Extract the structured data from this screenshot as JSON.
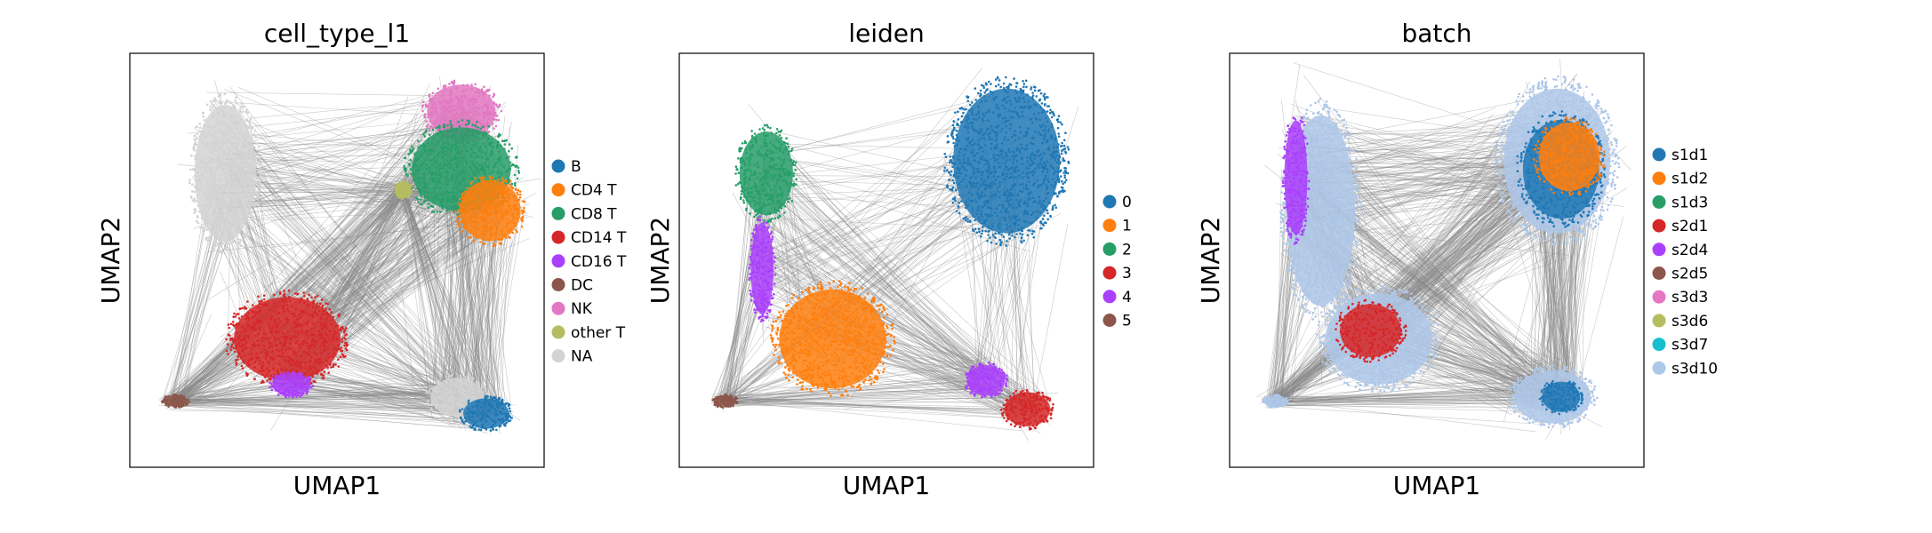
{
  "figure": {
    "background": "#ffffff",
    "edge_color": "#888888",
    "na_color": "#d3d3d3"
  },
  "chart_data": [
    {
      "type": "scatter",
      "title": "cell_type_l1",
      "xlabel": "UMAP1",
      "ylabel": "UMAP2",
      "xlim": [
        0,
        1
      ],
      "ylim": [
        0,
        1
      ],
      "grid": false,
      "legend_position": "right",
      "categories": [
        {
          "name": "B",
          "color": "#1f77b4"
        },
        {
          "name": "CD4 T",
          "color": "#ff7f0e"
        },
        {
          "name": "CD8 T",
          "color": "#279e68"
        },
        {
          "name": "CD14 T",
          "color": "#d62728"
        },
        {
          "name": "CD16 T",
          "color": "#aa40fc"
        },
        {
          "name": "DC",
          "color": "#8c564b"
        },
        {
          "name": "NK",
          "color": "#e377c2"
        },
        {
          "name": "other T",
          "color": "#b5bd61"
        },
        {
          "name": "NA",
          "color": "#d3d3d3"
        }
      ],
      "clusters": [
        {
          "category": "NA",
          "x": 0.23,
          "y": 0.71,
          "rx": 0.08,
          "ry": 0.18
        },
        {
          "category": "CD14 T",
          "x": 0.38,
          "y": 0.31,
          "rx": 0.14,
          "ry": 0.11
        },
        {
          "category": "CD16 T",
          "x": 0.39,
          "y": 0.2,
          "rx": 0.05,
          "ry": 0.03
        },
        {
          "category": "NK",
          "x": 0.8,
          "y": 0.86,
          "rx": 0.09,
          "ry": 0.07
        },
        {
          "category": "CD8 T",
          "x": 0.8,
          "y": 0.72,
          "rx": 0.13,
          "ry": 0.11
        },
        {
          "category": "CD4 T",
          "x": 0.87,
          "y": 0.62,
          "rx": 0.08,
          "ry": 0.08
        },
        {
          "category": "other T",
          "x": 0.66,
          "y": 0.67,
          "rx": 0.02,
          "ry": 0.02
        },
        {
          "category": "NA",
          "x": 0.79,
          "y": 0.17,
          "rx": 0.07,
          "ry": 0.05
        },
        {
          "category": "B",
          "x": 0.86,
          "y": 0.13,
          "rx": 0.06,
          "ry": 0.04
        },
        {
          "category": "DC",
          "x": 0.11,
          "y": 0.16,
          "rx": 0.03,
          "ry": 0.015
        }
      ]
    },
    {
      "type": "scatter",
      "title": "leiden",
      "xlabel": "UMAP1",
      "ylabel": "UMAP2",
      "xlim": [
        0,
        1
      ],
      "ylim": [
        0,
        1
      ],
      "grid": false,
      "legend_position": "right",
      "categories": [
        {
          "name": "0",
          "color": "#1f77b4"
        },
        {
          "name": "1",
          "color": "#ff7f0e"
        },
        {
          "name": "2",
          "color": "#279e68"
        },
        {
          "name": "3",
          "color": "#d62728"
        },
        {
          "name": "4",
          "color": "#aa40fc"
        },
        {
          "name": "5",
          "color": "#8c564b"
        }
      ],
      "clusters": [
        {
          "category": "0",
          "x": 0.79,
          "y": 0.74,
          "rx": 0.14,
          "ry": 0.19
        },
        {
          "category": "2",
          "x": 0.21,
          "y": 0.71,
          "rx": 0.07,
          "ry": 0.11
        },
        {
          "category": "4",
          "x": 0.2,
          "y": 0.48,
          "rx": 0.03,
          "ry": 0.12
        },
        {
          "category": "1",
          "x": 0.37,
          "y": 0.31,
          "rx": 0.14,
          "ry": 0.13
        },
        {
          "category": "4",
          "x": 0.74,
          "y": 0.21,
          "rx": 0.05,
          "ry": 0.04
        },
        {
          "category": "3",
          "x": 0.84,
          "y": 0.14,
          "rx": 0.06,
          "ry": 0.045
        },
        {
          "category": "5",
          "x": 0.11,
          "y": 0.16,
          "rx": 0.03,
          "ry": 0.015
        }
      ]
    },
    {
      "type": "scatter",
      "title": "batch",
      "xlabel": "UMAP1",
      "ylabel": "UMAP2",
      "xlim": [
        0,
        1
      ],
      "ylim": [
        0,
        1
      ],
      "grid": false,
      "legend_position": "right",
      "categories": [
        {
          "name": "s1d1",
          "color": "#1f77b4"
        },
        {
          "name": "s1d2",
          "color": "#ff7f0e"
        },
        {
          "name": "s1d3",
          "color": "#279e68"
        },
        {
          "name": "s2d1",
          "color": "#d62728"
        },
        {
          "name": "s2d4",
          "color": "#aa40fc"
        },
        {
          "name": "s2d5",
          "color": "#8c564b"
        },
        {
          "name": "s3d3",
          "color": "#e377c2"
        },
        {
          "name": "s3d6",
          "color": "#b5bd61"
        },
        {
          "name": "s3d7",
          "color": "#17becf"
        },
        {
          "name": "s3d10",
          "color": "#aec7e8"
        }
      ],
      "clusters": [
        {
          "category": "s3d10",
          "x": 0.79,
          "y": 0.74,
          "rx": 0.14,
          "ry": 0.19
        },
        {
          "category": "s1d1",
          "x": 0.8,
          "y": 0.72,
          "rx": 0.1,
          "ry": 0.13
        },
        {
          "category": "s1d2",
          "x": 0.82,
          "y": 0.75,
          "rx": 0.08,
          "ry": 0.09
        },
        {
          "category": "s3d10",
          "x": 0.22,
          "y": 0.62,
          "rx": 0.09,
          "ry": 0.25
        },
        {
          "category": "s2d4",
          "x": 0.16,
          "y": 0.7,
          "rx": 0.03,
          "ry": 0.15
        },
        {
          "category": "s3d10",
          "x": 0.36,
          "y": 0.31,
          "rx": 0.14,
          "ry": 0.12
        },
        {
          "category": "s2d1",
          "x": 0.34,
          "y": 0.33,
          "rx": 0.08,
          "ry": 0.07
        },
        {
          "category": "s3d10",
          "x": 0.78,
          "y": 0.17,
          "rx": 0.1,
          "ry": 0.07
        },
        {
          "category": "s1d1",
          "x": 0.8,
          "y": 0.17,
          "rx": 0.05,
          "ry": 0.04
        },
        {
          "category": "s3d10",
          "x": 0.11,
          "y": 0.16,
          "rx": 0.03,
          "ry": 0.015
        }
      ]
    }
  ]
}
